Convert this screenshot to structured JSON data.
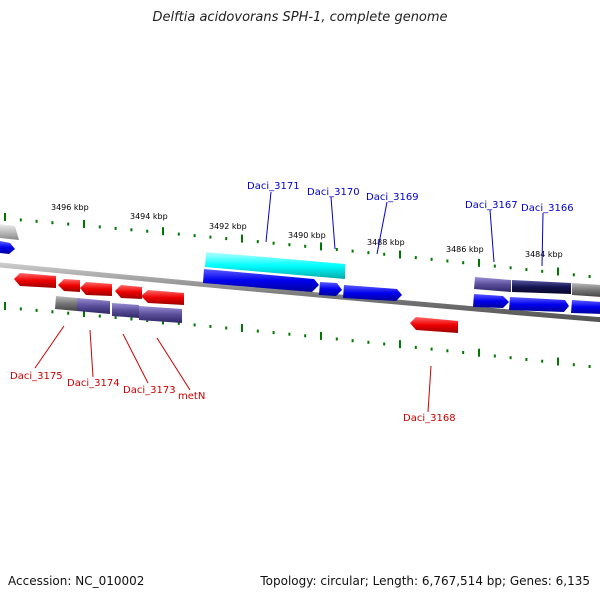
{
  "title": "Delftia acidovorans SPH-1, complete genome",
  "footer": {
    "accession": "Accession: NC_010002",
    "topology": "Topology: circular; Length: 6,767,514 bp; Genes: 6,135"
  },
  "colors": {
    "forward_gene": "#0000ee",
    "reverse_gene": "#ee0000",
    "highlight_gene": "#00ffff",
    "purple_gene": "#5a4e9a",
    "gray_gene": "#777777",
    "backbone": "#808080",
    "tick": "#007700",
    "label_blue": "#0000cc",
    "label_red": "#cc0000"
  },
  "kbp_labels": [
    "3496 kbp",
    "3494 kbp",
    "3492 kbp",
    "3490 kbp",
    "3488 kbp",
    "3486 kbp",
    "3484 kbp"
  ],
  "gene_labels_top": [
    "Daci_3171",
    "Daci_3170",
    "Daci_3169",
    "Daci_3167",
    "Daci_3166"
  ],
  "gene_labels_bottom": [
    "Daci_3175",
    "Daci_3174",
    "Daci_3173",
    "metN",
    "Daci_3168"
  ]
}
